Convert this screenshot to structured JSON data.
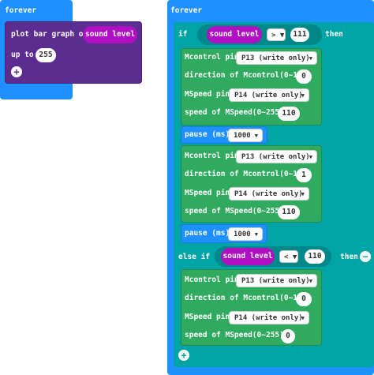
{
  "left_stack": {
    "forever_label": "forever",
    "plot_label": "plot bar graph of",
    "value_reporter": "sound level",
    "up_to_label": "up to",
    "up_to_value": "255"
  },
  "right_stack": {
    "forever_label": "forever",
    "if_label": "if",
    "then_label": "then",
    "else_if_label": "else if",
    "if_condition": {
      "reporter": "sound level",
      "operator": ">",
      "value": "111"
    },
    "else_if_condition": {
      "reporter": "sound level",
      "operator": "<",
      "value": "110"
    },
    "blocks": [
      {
        "label": "Mcontrol pin",
        "dropdown": "P13 (write only)"
      },
      {
        "label": "direction of Mcontrol(0~1)",
        "value": "0"
      },
      {
        "label": "MSpeed pin",
        "dropdown": "P14 (write only)"
      },
      {
        "label": "speed of MSpeed(0~255)",
        "value": "110"
      },
      {
        "label": "pause (ms)",
        "dropdown": "1000"
      },
      {
        "label": "Mcontrol pin",
        "dropdown": "P13 (write only)"
      },
      {
        "label": "direction of Mcontrol(0~1)",
        "value": "1"
      },
      {
        "label": "MSpeed pin",
        "dropdown": "P14 (write only)"
      },
      {
        "label": "speed of MSpeed(0~255)",
        "value": "110"
      },
      {
        "label": "pause (ms)",
        "dropdown": "1000"
      },
      {
        "label": "Mcontrol pin",
        "dropdown": "P13 (write only)"
      },
      {
        "label": "direction of Mcontrol(0~1)",
        "value": "0"
      },
      {
        "label": "MSpeed pin",
        "dropdown": "P14 (write only)"
      },
      {
        "label": "speed of MSpeed(0~255)",
        "value": "0"
      }
    ]
  },
  "colors": {
    "forever": "#1e90ff",
    "led_graph": "#5c2d91",
    "logic_if": "#00a4a6",
    "motor_blocks": "#2faa5f",
    "pause_blocks": "#1e90ff",
    "sound_reporter": "#b00fc3"
  },
  "icons": [
    "add-icon",
    "remove-icon",
    "dropdown-caret-icon"
  ]
}
